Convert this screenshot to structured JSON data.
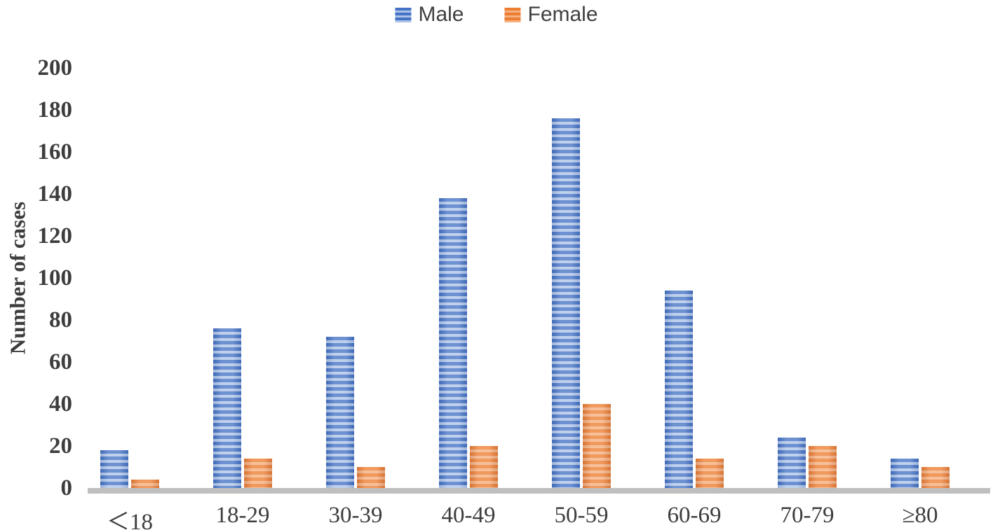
{
  "chart_data": {
    "type": "bar",
    "title": "",
    "categories": [
      "＜18",
      "18-29",
      "30-39",
      "40-49",
      "50-59",
      "60-69",
      "70-79",
      "≥80"
    ],
    "series": [
      {
        "name": "Male",
        "color": "#4472C4",
        "stripe_color": "#AEC4E9",
        "values": [
          18,
          76,
          72,
          138,
          176,
          94,
          24,
          14
        ]
      },
      {
        "name": "Female",
        "color": "#ED7D31",
        "stripe_color": "#F5AF7E",
        "values": [
          4,
          14,
          10,
          20,
          40,
          14,
          20,
          10
        ]
      }
    ],
    "xlabel": "",
    "ylabel": "Number of cases",
    "ylim": [
      0,
      200
    ],
    "ytick_step": 20,
    "yticks": [
      0,
      20,
      40,
      60,
      80,
      100,
      120,
      140,
      160,
      180,
      200
    ],
    "legend_position": "top-center",
    "grid": false,
    "axis_line_color": "#BFBFBF",
    "text_color": "#3d3d3d",
    "background": "#ffffff",
    "bar_pattern": "horizontal-stripes"
  }
}
